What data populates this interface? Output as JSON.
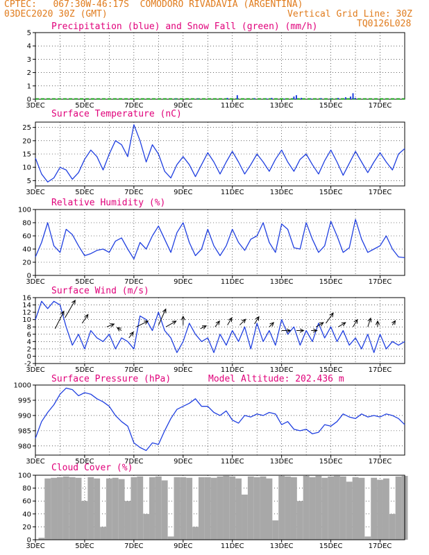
{
  "header": {
    "line1_left": "CPTEC:   067:30W-46:17S  COMODORO RIVADAVIA (ARGENTINA)",
    "line2_left": "03DEC2020 30Z (GMT)",
    "line2_right": "Vertical Grid Line: 30Z",
    "line3_right": "TQ0126L028"
  },
  "colors": {
    "header": "#e07b1c",
    "title": "#e0007a",
    "line": "#1f3fe0",
    "snow": "#1aa01a",
    "cloud": "#a8a8a8",
    "arrow": "#000000"
  },
  "x_labels": [
    "3DEC",
    "5DEC",
    "7DEC",
    "9DEC",
    "11DEC",
    "13DEC",
    "15DEC",
    "17DEC"
  ],
  "chart_data": [
    {
      "type": "bar",
      "title": "Precipitation (blue) and Snow Fall (green) (mm/h)",
      "ylim": [
        0,
        5
      ],
      "yticks": [
        0,
        1,
        2,
        3,
        4,
        5
      ],
      "x_day_range": [
        3,
        18
      ],
      "series": [
        {
          "name": "Precipitation",
          "color": "#1f3fe0",
          "x": [
            8.7,
            9.6,
            10.8,
            11.2,
            11.9,
            12.4,
            12.6,
            13.1,
            13.5,
            13.6,
            13.8,
            14.2,
            14.6,
            15.0,
            15.3,
            15.6,
            15.8,
            15.9,
            16.0
          ],
          "values": [
            0.05,
            0.05,
            0.1,
            0.3,
            0.08,
            0.05,
            0.1,
            0.05,
            0.2,
            0.3,
            0.1,
            0.05,
            0.08,
            0.05,
            0.1,
            0.15,
            0.2,
            0.45,
            0.1
          ]
        },
        {
          "name": "Snow Fall",
          "color": "#1aa01a",
          "values_constant": 0.02
        }
      ]
    },
    {
      "type": "line",
      "title": "Surface Temperature (nC)",
      "ylim": [
        3,
        27
      ],
      "yticks": [
        5,
        10,
        15,
        20,
        25
      ],
      "x_day_range": [
        3,
        18
      ],
      "x": [
        3.0,
        3.25,
        3.5,
        3.75,
        4.0,
        4.25,
        4.5,
        4.75,
        5.0,
        5.25,
        5.5,
        5.75,
        6.0,
        6.25,
        6.5,
        6.75,
        7.0,
        7.25,
        7.5,
        7.75,
        8.0,
        8.25,
        8.5,
        8.75,
        9.0,
        9.25,
        9.5,
        9.75,
        10.0,
        10.25,
        10.5,
        10.75,
        11.0,
        11.25,
        11.5,
        11.75,
        12.0,
        12.25,
        12.5,
        12.75,
        13.0,
        13.25,
        13.5,
        13.75,
        14.0,
        14.25,
        14.5,
        14.75,
        15.0,
        15.25,
        15.5,
        15.75,
        16.0,
        16.25,
        16.5,
        16.75,
        17.0,
        17.25,
        17.5,
        17.75,
        18.0
      ],
      "values": [
        13.5,
        7.5,
        4.5,
        6.0,
        10.0,
        9.0,
        5.5,
        8.0,
        13.0,
        16.5,
        14.0,
        9.0,
        15.0,
        20.0,
        18.5,
        14.0,
        26.0,
        20.0,
        12.0,
        18.5,
        15.0,
        8.5,
        6.0,
        11.0,
        14.0,
        11.0,
        6.5,
        11.0,
        15.5,
        12.0,
        7.5,
        12.0,
        16.0,
        12.0,
        7.5,
        11.0,
        15.0,
        12.0,
        8.5,
        13.0,
        16.5,
        12.0,
        8.5,
        13.0,
        15.0,
        11.0,
        7.5,
        12.5,
        16.5,
        12.0,
        7.0,
        11.5,
        16.0,
        12.0,
        8.0,
        12.0,
        15.5,
        12.0,
        9.0,
        15.0,
        17.0
      ]
    },
    {
      "type": "line",
      "title": "Relative Humidity (%)",
      "ylim": [
        0,
        100
      ],
      "yticks": [
        0,
        20,
        40,
        60,
        80,
        100
      ],
      "x_day_range": [
        3,
        18
      ],
      "x": [
        3.0,
        3.25,
        3.5,
        3.75,
        4.0,
        4.25,
        4.5,
        4.75,
        5.0,
        5.25,
        5.5,
        5.75,
        6.0,
        6.25,
        6.5,
        6.75,
        7.0,
        7.25,
        7.5,
        7.75,
        8.0,
        8.25,
        8.5,
        8.75,
        9.0,
        9.25,
        9.5,
        9.75,
        10.0,
        10.25,
        10.5,
        10.75,
        11.0,
        11.25,
        11.5,
        11.75,
        12.0,
        12.25,
        12.5,
        12.75,
        13.0,
        13.25,
        13.5,
        13.75,
        14.0,
        14.25,
        14.5,
        14.75,
        15.0,
        15.25,
        15.5,
        15.75,
        16.0,
        16.25,
        16.5,
        16.75,
        17.0,
        17.25,
        17.5,
        17.75,
        18.0
      ],
      "values": [
        28,
        50,
        80,
        45,
        35,
        70,
        62,
        45,
        30,
        33,
        38,
        40,
        35,
        52,
        57,
        40,
        25,
        50,
        40,
        60,
        75,
        55,
        35,
        65,
        80,
        50,
        30,
        40,
        70,
        45,
        30,
        45,
        70,
        50,
        38,
        55,
        60,
        80,
        50,
        35,
        78,
        70,
        42,
        40,
        80,
        55,
        35,
        45,
        82,
        60,
        35,
        42,
        85,
        55,
        35,
        40,
        45,
        60,
        40,
        28,
        27
      ]
    },
    {
      "type": "line",
      "title": "Surface Wind (m/s)",
      "ylim": [
        -2,
        16
      ],
      "yticks": [
        -2,
        0,
        2,
        4,
        6,
        8,
        10,
        12,
        14,
        16
      ],
      "x_day_range": [
        3,
        18
      ],
      "x": [
        3.0,
        3.25,
        3.5,
        3.75,
        4.0,
        4.25,
        4.5,
        4.75,
        5.0,
        5.25,
        5.5,
        5.75,
        6.0,
        6.25,
        6.5,
        6.75,
        7.0,
        7.25,
        7.5,
        7.75,
        8.0,
        8.25,
        8.5,
        8.75,
        9.0,
        9.25,
        9.5,
        9.75,
        10.0,
        10.25,
        10.5,
        10.75,
        11.0,
        11.25,
        11.5,
        11.75,
        12.0,
        12.25,
        12.5,
        12.75,
        13.0,
        13.25,
        13.5,
        13.75,
        14.0,
        14.25,
        14.5,
        14.75,
        15.0,
        15.25,
        15.5,
        15.75,
        16.0,
        16.25,
        16.5,
        16.75,
        17.0,
        17.25,
        17.5,
        17.75,
        18.0
      ],
      "values": [
        10,
        15,
        13,
        15,
        14,
        8,
        3,
        6,
        2,
        7,
        5,
        4,
        6,
        2,
        5,
        4,
        2,
        11,
        10,
        7,
        12,
        7,
        5,
        1,
        4,
        9,
        6,
        4,
        5,
        1,
        6,
        3,
        7,
        4,
        8,
        2,
        9,
        4,
        7,
        3,
        10,
        6,
        8,
        3,
        7,
        4,
        9,
        5,
        8,
        4,
        7,
        3,
        5,
        2,
        6,
        1,
        6,
        2,
        4,
        3,
        4
      ],
      "arrows": [
        {
          "x": 3.8,
          "y": 7.5,
          "u": 3.0,
          "v": 6.0
        },
        {
          "x": 4.2,
          "y": 10.5,
          "u": 3.5,
          "v": 6.0
        },
        {
          "x": 4.9,
          "y": 9.0,
          "u": 2.0,
          "v": 3.0
        },
        {
          "x": 5.9,
          "y": 8.0,
          "u": 2.5,
          "v": 1.0
        },
        {
          "x": 6.5,
          "y": 7.0,
          "u": -1.5,
          "v": 1.0
        },
        {
          "x": 6.8,
          "y": 5.0,
          "u": 1.5,
          "v": 2.0
        },
        {
          "x": 7.1,
          "y": 8.0,
          "u": 4.0,
          "v": 2.0
        },
        {
          "x": 8.0,
          "y": 8.5,
          "u": 2.5,
          "v": 5.5
        },
        {
          "x": 8.3,
          "y": 8.0,
          "u": 3.5,
          "v": 2.0
        },
        {
          "x": 9.0,
          "y": 8.5,
          "u": 0.0,
          "v": 3.0
        },
        {
          "x": 9.7,
          "y": 7.5,
          "u": 2.0,
          "v": 1.0
        },
        {
          "x": 10.3,
          "y": 8.0,
          "u": 1.5,
          "v": 2.0
        },
        {
          "x": 10.8,
          "y": 8.5,
          "u": 1.5,
          "v": 2.5
        },
        {
          "x": 11.3,
          "y": 8.5,
          "u": 2.0,
          "v": 2.0
        },
        {
          "x": 11.9,
          "y": 8.8,
          "u": 1.5,
          "v": 2.5
        },
        {
          "x": 12.5,
          "y": 8.0,
          "u": 1.5,
          "v": 1.5
        },
        {
          "x": 13.0,
          "y": 7.0,
          "u": 3.0,
          "v": 0.0
        },
        {
          "x": 13.6,
          "y": 7.0,
          "u": 2.5,
          "v": 0.0
        },
        {
          "x": 14.2,
          "y": 7.0,
          "u": 2.0,
          "v": 0.0
        },
        {
          "x": 14.4,
          "y": 8.0,
          "u": 2.5,
          "v": 1.5
        },
        {
          "x": 14.8,
          "y": 9.0,
          "u": 2.5,
          "v": 3.5
        },
        {
          "x": 15.3,
          "y": 8.0,
          "u": 2.5,
          "v": 1.5
        },
        {
          "x": 15.9,
          "y": 8.0,
          "u": 1.5,
          "v": 2.5
        },
        {
          "x": 16.5,
          "y": 8.0,
          "u": 1.0,
          "v": 3.0
        },
        {
          "x": 16.9,
          "y": 8.0,
          "u": 0.0,
          "v": 2.0
        },
        {
          "x": 17.5,
          "y": 8.5,
          "u": 1.0,
          "v": 1.5
        }
      ]
    },
    {
      "type": "line",
      "title": "Surface Pressure (hPa)",
      "annotation": "Model Altitude: 202.436 m",
      "ylim": [
        977,
        1000
      ],
      "yticks": [
        980,
        985,
        990,
        995,
        1000
      ],
      "x_day_range": [
        3,
        18
      ],
      "x": [
        3.0,
        3.25,
        3.5,
        3.75,
        4.0,
        4.25,
        4.5,
        4.75,
        5.0,
        5.25,
        5.5,
        5.75,
        6.0,
        6.25,
        6.5,
        6.75,
        7.0,
        7.25,
        7.5,
        7.75,
        8.0,
        8.25,
        8.5,
        8.75,
        9.0,
        9.25,
        9.5,
        9.75,
        10.0,
        10.25,
        10.5,
        10.75,
        11.0,
        11.25,
        11.5,
        11.75,
        12.0,
        12.25,
        12.5,
        12.75,
        13.0,
        13.25,
        13.5,
        13.75,
        14.0,
        14.25,
        14.5,
        14.75,
        15.0,
        15.25,
        15.5,
        15.75,
        16.0,
        16.25,
        16.5,
        16.75,
        17.0,
        17.25,
        17.5,
        17.75,
        18.0
      ],
      "values": [
        982.5,
        988.0,
        991.0,
        993.5,
        997.0,
        999.0,
        998.5,
        996.5,
        997.5,
        997.0,
        995.5,
        994.5,
        993.0,
        990.0,
        988.0,
        986.5,
        981.0,
        979.5,
        978.5,
        981.0,
        980.5,
        985.0,
        989.0,
        992.0,
        993.0,
        994.0,
        995.5,
        993.0,
        993.0,
        991.0,
        990.0,
        991.5,
        988.5,
        987.5,
        990.0,
        989.5,
        990.5,
        990.0,
        991.0,
        990.5,
        987.0,
        988.0,
        985.5,
        985.0,
        985.5,
        984.0,
        984.5,
        987.0,
        986.5,
        988.0,
        990.5,
        989.5,
        989.0,
        990.5,
        989.5,
        990.0,
        989.5,
        990.5,
        990.0,
        989.0,
        987.0
      ]
    },
    {
      "type": "bar",
      "title": "Cloud Cover (%)",
      "ylim": [
        0,
        100
      ],
      "yticks": [
        0,
        20,
        40,
        60,
        80,
        100
      ],
      "x_day_range": [
        3,
        18
      ],
      "x": [
        3.0,
        3.25,
        3.5,
        3.75,
        4.0,
        4.25,
        4.5,
        4.75,
        5.0,
        5.25,
        5.5,
        5.75,
        6.0,
        6.25,
        6.5,
        6.75,
        7.0,
        7.25,
        7.5,
        7.75,
        8.0,
        8.25,
        8.5,
        8.75,
        9.0,
        9.25,
        9.5,
        9.75,
        10.0,
        10.25,
        10.5,
        10.75,
        11.0,
        11.25,
        11.5,
        11.75,
        12.0,
        12.25,
        12.5,
        12.75,
        13.0,
        13.25,
        13.5,
        13.75,
        14.0,
        14.25,
        14.5,
        14.75,
        15.0,
        15.25,
        15.5,
        15.75,
        16.0,
        16.25,
        16.5,
        16.75,
        17.0,
        17.25,
        17.5,
        17.75,
        18.0
      ],
      "values": [
        0,
        3,
        95,
        96,
        97,
        98,
        97,
        96,
        60,
        97,
        95,
        20,
        95,
        96,
        94,
        60,
        97,
        98,
        40,
        97,
        98,
        92,
        5,
        97,
        97,
        96,
        20,
        97,
        97,
        96,
        98,
        99,
        98,
        95,
        70,
        98,
        97,
        98,
        95,
        30,
        99,
        98,
        97,
        60,
        99,
        97,
        99,
        96,
        98,
        99,
        98,
        90,
        97,
        96,
        5,
        96,
        93,
        95,
        40,
        98,
        99
      ]
    }
  ]
}
